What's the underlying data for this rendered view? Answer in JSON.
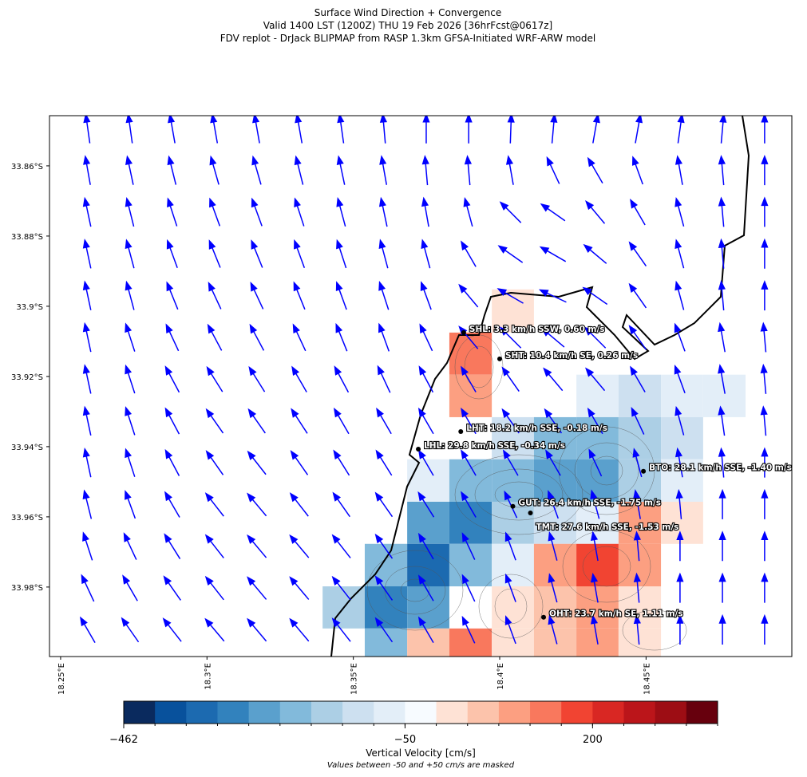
{
  "title": [
    "Surface Wind Direction + Convergence",
    "Valid 1400 LST (1200Z) THU 19 Feb 2026 [36hrFcst@0617z]",
    "FDV replot - DrJack BLIPMAP from RASP 1.3km GFSA-Initiated WRF-ARW model"
  ],
  "map": {
    "xlim": [
      18.2462,
      18.4998
    ],
    "ylim": [
      -33.9998,
      -33.8457
    ],
    "xticks": [
      {
        "value": 18.25,
        "label": "18.25°E"
      },
      {
        "value": 18.3,
        "label": "18.3°E"
      },
      {
        "value": 18.35,
        "label": "18.35°E"
      },
      {
        "value": 18.4,
        "label": "18.4°E"
      },
      {
        "value": 18.45,
        "label": "18.45°E"
      }
    ],
    "yticks": [
      {
        "value": -33.86,
        "label": "33.86°S"
      },
      {
        "value": -33.88,
        "label": "33.88°S"
      },
      {
        "value": -33.9,
        "label": "33.9°S"
      },
      {
        "value": -33.92,
        "label": "33.92°S"
      },
      {
        "value": -33.94,
        "label": "33.94°S"
      },
      {
        "value": -33.96,
        "label": "33.96°S"
      },
      {
        "value": -33.98,
        "label": "33.98°S"
      }
    ],
    "wind": {
      "color": "#0000ff",
      "lons": [
        18.2593,
        18.2738,
        18.2882,
        18.3027,
        18.3171,
        18.3316,
        18.346,
        18.3605,
        18.3749,
        18.3894,
        18.4038,
        18.4183,
        18.4327,
        18.4472,
        18.4616,
        18.4761,
        18.4905
      ],
      "lats": [
        -33.8495,
        -33.8614,
        -33.8733,
        -33.8852,
        -33.8971,
        -33.909,
        -33.9209,
        -33.9328,
        -33.9447,
        -33.9566,
        -33.9685,
        -33.9804,
        -33.9923
      ],
      "angle_deg": [
        [
          -8,
          -8,
          -10,
          -10,
          -10,
          -10,
          -8,
          -5,
          0,
          0,
          2,
          5,
          10,
          10,
          8,
          5,
          0
        ],
        [
          -10,
          -12,
          -14,
          -16,
          -16,
          -14,
          -12,
          -10,
          -5,
          -5,
          -10,
          -25,
          -30,
          -20,
          -10,
          -5,
          0
        ],
        [
          -12,
          -14,
          -18,
          -20,
          -20,
          -18,
          -15,
          -12,
          -10,
          -15,
          -45,
          -55,
          -40,
          -30,
          -15,
          -5,
          0
        ],
        [
          -12,
          -15,
          -20,
          -22,
          -22,
          -20,
          -18,
          -15,
          -15,
          -30,
          -55,
          -60,
          -50,
          -35,
          -15,
          -5,
          0
        ],
        [
          -12,
          -15,
          -22,
          -25,
          -25,
          -22,
          -20,
          -18,
          -20,
          -40,
          -60,
          -65,
          -55,
          -35,
          -15,
          -5,
          0
        ],
        [
          -12,
          -18,
          -25,
          -28,
          -28,
          -25,
          -22,
          -20,
          -25,
          -40,
          -45,
          -50,
          -45,
          -35,
          -20,
          -10,
          -5
        ],
        [
          -12,
          -18,
          -28,
          -32,
          -32,
          -30,
          -28,
          -25,
          -28,
          -30,
          -35,
          -40,
          -40,
          -30,
          -20,
          -10,
          -5
        ],
        [
          -12,
          -18,
          -28,
          -35,
          -35,
          -33,
          -30,
          -30,
          -30,
          -30,
          -35,
          -35,
          -30,
          -25,
          -15,
          -8,
          -5
        ],
        [
          -12,
          -18,
          -28,
          -35,
          -38,
          -35,
          -32,
          -32,
          -30,
          -30,
          -30,
          -30,
          -25,
          -15,
          -10,
          -5,
          0
        ],
        [
          -14,
          -20,
          -30,
          -38,
          -40,
          -38,
          -35,
          -35,
          -32,
          -30,
          -25,
          -20,
          -15,
          -10,
          -5,
          0,
          0
        ],
        [
          -18,
          -25,
          -32,
          -38,
          -40,
          -40,
          -38,
          -35,
          -30,
          -25,
          -20,
          -15,
          -10,
          -5,
          0,
          0,
          0
        ],
        [
          -25,
          -30,
          -35,
          -38,
          -40,
          -40,
          -38,
          -35,
          -30,
          -25,
          -20,
          -15,
          -10,
          -5,
          0,
          0,
          0
        ],
        [
          -30,
          -35,
          -38,
          -40,
          -40,
          -40,
          -38,
          -35,
          -30,
          -25,
          -20,
          -15,
          -10,
          -5,
          0,
          0,
          0
        ]
      ]
    },
    "convergence": {
      "lon_edges": [
        18.3395,
        18.3539,
        18.3684,
        18.3828,
        18.3973,
        18.4117,
        18.4262,
        18.4406,
        18.4551,
        18.4695,
        18.484
      ],
      "lat_edges": [
        -33.8952,
        -33.9075,
        -33.9195,
        -33.9316,
        -33.9436,
        -33.9557,
        -33.9677,
        -33.9798,
        -33.9918,
        -34.0039
      ],
      "values": [
        [
          null,
          null,
          null,
          null,
          60,
          null,
          null,
          null,
          null,
          null
        ],
        [
          null,
          null,
          null,
          140,
          null,
          null,
          null,
          null,
          null,
          null
        ],
        [
          null,
          null,
          null,
          110,
          null,
          null,
          -60,
          -90,
          -60,
          -60
        ],
        [
          null,
          null,
          null,
          null,
          -80,
          -180,
          -180,
          -110,
          -85,
          null
        ],
        [
          null,
          null,
          -60,
          -150,
          -150,
          -200,
          -220,
          -130,
          -60,
          null
        ],
        [
          null,
          null,
          -220,
          -280,
          -120,
          -80,
          -60,
          110,
          60,
          null
        ],
        [
          null,
          -170,
          -320,
          -180,
          -60,
          110,
          180,
          110,
          null,
          null
        ],
        [
          -110,
          -270,
          -220,
          null,
          60,
          80,
          110,
          60,
          null,
          null
        ],
        [
          null,
          -170,
          80,
          140,
          60,
          80,
          110,
          60,
          null,
          null
        ]
      ]
    },
    "stations": [
      {
        "label": "SHL: 3.3 km/h SSW, 0.60 m/s",
        "lon": 18.3877,
        "lat": -33.9075
      },
      {
        "label": "SHT: 10.4 km/h SE, 0.26 m/s",
        "lon": 18.4,
        "lat": -33.915
      },
      {
        "label": "LHT: 18.2 km/h SSE, -0.18 m/s",
        "lon": 18.3867,
        "lat": -33.9357
      },
      {
        "label": "LHL: 29.8 km/h SSE, -0.34 m/s",
        "lon": 18.3722,
        "lat": -33.9407
      },
      {
        "label": "BTO: 28.1 km/h SSE, -1.40 m/s",
        "lon": 18.4491,
        "lat": -33.947
      },
      {
        "label": "GUT: 26.4 km/h SSE, -1.75 m/s",
        "lon": 18.4045,
        "lat": -33.957
      },
      {
        "label": "TMT: 27.6 km/h SSE, -1.53 m/s",
        "lon": 18.4105,
        "lat": -33.9589
      },
      {
        "label": "OHT: 23.7 km/h SE, 1.11 m/s",
        "lon": 18.415,
        "lat": -33.9886
      }
    ]
  },
  "colorbar": {
    "label": "Vertical Velocity [cm/s]",
    "note": "Values between -50 and +50 cm/s are masked",
    "edges": [
      -462,
      -400,
      -350,
      -300,
      -250,
      -200,
      -150,
      -100,
      -75,
      -50,
      50,
      75,
      100,
      125,
      150,
      200,
      250,
      300,
      350,
      400
    ],
    "colors": [
      "#0a2a5e",
      "#08519c",
      "#1c6ab0",
      "#3282bd",
      "#5aa0cd",
      "#82badb",
      "#accfe5",
      "#cde0f0",
      "#e3eef8",
      "#f7fbff",
      "#fee2d5",
      "#fcc3ab",
      "#fc9f81",
      "#f9785d",
      "#f14432",
      "#d92723",
      "#bb151a",
      "#9d0d14",
      "#67000d"
    ],
    "ticks": [
      {
        "value": -462,
        "label": "−462"
      },
      {
        "value": -50,
        "label": "−50"
      },
      200
    ]
  }
}
